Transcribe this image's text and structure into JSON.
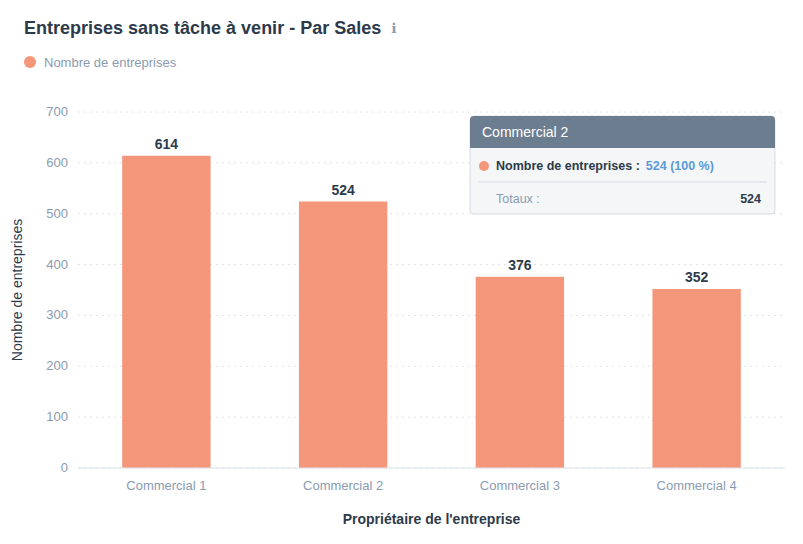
{
  "chart_data": {
    "type": "bar",
    "title": "Entreprises sans tâche à venir - Par Sales",
    "xlabel": "Propriétaire de l'entreprise",
    "ylabel": "Nombre de entreprises",
    "categories": [
      "Commercial 1",
      "Commercial 2",
      "Commercial 3",
      "Commercial 4"
    ],
    "series": [
      {
        "name": "Nombre de entreprises",
        "color": "#F4967A",
        "values": [
          614,
          524,
          376,
          352
        ]
      }
    ],
    "ylim": [
      0,
      700
    ],
    "yticks": [
      0,
      100,
      200,
      300,
      400,
      500,
      600,
      700
    ],
    "grid": true,
    "legend": "top left",
    "data_labels": true,
    "annotations": [
      "Commercial 2",
      "Nombre de entreprises :",
      "524 (100 %)",
      "Totaux :",
      "524",
      "ℹ"
    ]
  }
}
